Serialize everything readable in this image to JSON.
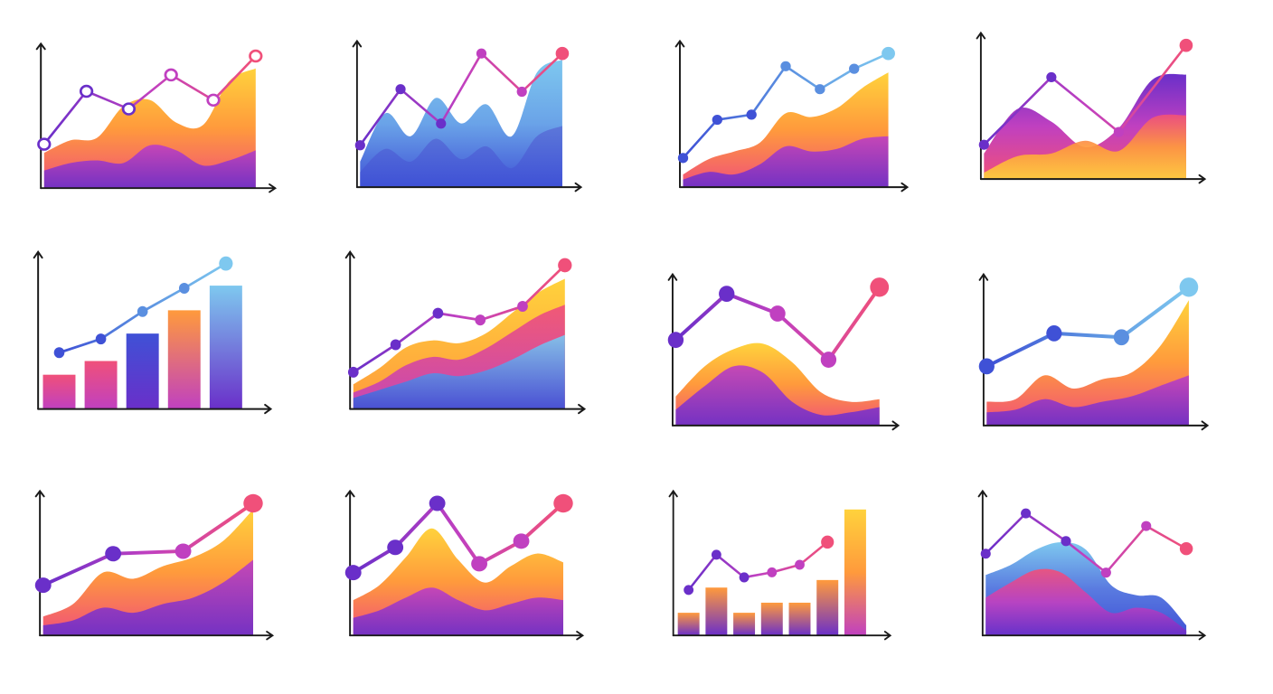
{
  "palette": {
    "axis": "#1a1a1a",
    "purple": "#6a2fc9",
    "magenta": "#c040c0",
    "pink": "#f0507a",
    "orange": "#ff9a3c",
    "yellow": "#ffd23c",
    "blue": "#3f51d6",
    "light_blue": "#7ec8ef"
  },
  "chart_data": [
    {
      "type": "area",
      "style": "sunset",
      "marker": "ring",
      "line": [
        30,
        72,
        58,
        85,
        65,
        100
      ],
      "areas": [
        [
          28,
          38,
          40,
          65,
          70,
          52,
          50,
          85,
          95
        ],
        [
          14,
          20,
          22,
          20,
          34,
          30,
          18,
          22,
          30
        ]
      ]
    },
    {
      "type": "area",
      "style": "ocean",
      "marker": "dot",
      "line": [
        28,
        72,
        45,
        100,
        70,
        100
      ],
      "areas": [
        [
          20,
          58,
          40,
          70,
          50,
          65,
          40,
          90,
          100
        ],
        [
          12,
          30,
          20,
          38,
          22,
          32,
          15,
          40,
          48
        ]
      ]
    },
    {
      "type": "area",
      "style": "sunset",
      "marker": "dot",
      "line": [
        18,
        48,
        52,
        90,
        72,
        88,
        100
      ],
      "areas": [
        [
          10,
          22,
          28,
          35,
          58,
          55,
          62,
          78,
          90
        ],
        [
          6,
          12,
          10,
          18,
          32,
          28,
          30,
          38,
          40
        ]
      ]
    },
    {
      "type": "area",
      "style": "dusk",
      "marker": "dot",
      "line": [
        22,
        75,
        32,
        100
      ],
      "areas": [
        [
          20,
          55,
          45,
          25,
          40,
          78,
          82
        ],
        [
          5,
          18,
          20,
          30,
          22,
          48,
          50
        ]
      ]
    },
    {
      "type": "bar",
      "style": "bars",
      "marker": "dot",
      "values": [
        25,
        35,
        55,
        72,
        90
      ],
      "line": [
        35,
        45,
        65,
        82,
        100
      ]
    },
    {
      "type": "area",
      "style": "stacked",
      "marker": "dot",
      "line": [
        22,
        42,
        65,
        60,
        70,
        100
      ],
      "areas": [
        [
          18,
          30,
          45,
          50,
          48,
          55,
          70,
          85,
          95
        ],
        [
          12,
          20,
          32,
          38,
          36,
          44,
          56,
          68,
          76
        ],
        [
          8,
          14,
          20,
          26,
          24,
          28,
          36,
          46,
          54
        ]
      ]
    },
    {
      "type": "area",
      "style": "sunset",
      "marker": "big",
      "line": [
        60,
        95,
        80,
        45,
        100
      ],
      "areas": [
        [
          22,
          45,
          58,
          62,
          48,
          25,
          18,
          20
        ],
        [
          12,
          30,
          45,
          40,
          18,
          8,
          10,
          14
        ]
      ]
    },
    {
      "type": "area",
      "style": "sunset",
      "marker": "big",
      "line": [
        40,
        65,
        62,
        100
      ],
      "areas": [
        [
          18,
          20,
          38,
          28,
          35,
          40,
          60,
          95
        ],
        [
          10,
          12,
          20,
          14,
          18,
          22,
          30,
          38
        ]
      ]
    },
    {
      "type": "area",
      "style": "sunset",
      "marker": "big",
      "line": [
        35,
        60,
        62,
        100
      ],
      "areas": [
        [
          15,
          25,
          50,
          45,
          55,
          62,
          75,
          100
        ],
        [
          8,
          12,
          22,
          18,
          25,
          30,
          42,
          60
        ]
      ]
    },
    {
      "type": "area",
      "style": "sunset",
      "marker": "big",
      "line": [
        45,
        65,
        100,
        52,
        70,
        100
      ],
      "areas": [
        [
          28,
          40,
          62,
          85,
          60,
          42,
          55,
          65,
          58
        ],
        [
          14,
          20,
          30,
          38,
          28,
          20,
          25,
          30,
          28
        ]
      ]
    },
    {
      "type": "bar",
      "style": "bars",
      "marker": "dot",
      "values": [
        18,
        38,
        18,
        26,
        26,
        44,
        100
      ],
      "line": [
        30,
        58,
        40,
        44,
        50,
        68
      ]
    },
    {
      "type": "area",
      "style": "twilight",
      "marker": "dot",
      "line": [
        60,
        92,
        70,
        45,
        82,
        64
      ],
      "areas": [
        [
          48,
          56,
          68,
          74,
          68,
          40,
          32,
          30,
          8
        ],
        [
          30,
          42,
          52,
          50,
          34,
          18,
          22,
          18,
          4
        ]
      ]
    }
  ]
}
